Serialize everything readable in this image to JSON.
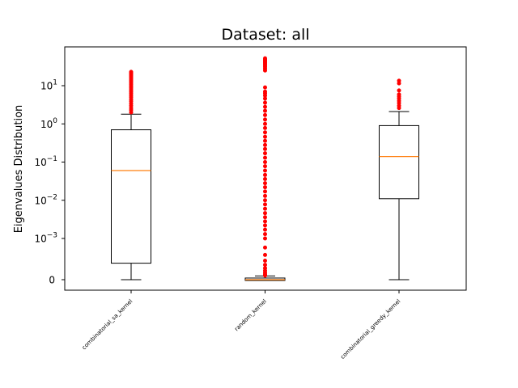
{
  "chart_data": {
    "type": "box",
    "title": "Dataset: all",
    "xlabel": "",
    "ylabel": "Eigenvalues Distribution",
    "yscale": "symlog",
    "ylim_label": [
      "0",
      "10^1"
    ],
    "yticks": [
      {
        "value": 0,
        "label": "0",
        "base": "0",
        "exp": ""
      },
      {
        "value": 0.001,
        "label": "10^-3",
        "base": "10",
        "exp": "−3"
      },
      {
        "value": 0.01,
        "label": "10^-2",
        "base": "10",
        "exp": "−2"
      },
      {
        "value": 0.1,
        "label": "10^-1",
        "base": "10",
        "exp": "−1"
      },
      {
        "value": 1,
        "label": "10^0",
        "base": "10",
        "exp": "0"
      },
      {
        "value": 10,
        "label": "10^1",
        "base": "10",
        "exp": "1"
      }
    ],
    "colors": {
      "box": "#000000",
      "median": "#ff7f0e",
      "outlier": "#ff0000"
    },
    "categories": [
      "combinatorial_sa_kernel",
      "random_kernel",
      "combinatorial_greedy_kernel"
    ],
    "boxes": [
      {
        "name": "combinatorial_sa_kernel",
        "whisker_low": 0,
        "q1": 0.0004,
        "median": 0.06,
        "q3": 0.7,
        "whisker_high": 1.8,
        "outliers": [
          2,
          2.3,
          2.6,
          3,
          3.4,
          3.9,
          4.4,
          5,
          5.6,
          6.3,
          7,
          7.8,
          8.7,
          9.6,
          10.6,
          11.7,
          12.9,
          14.1,
          15.5,
          17,
          18.5,
          20,
          21.5,
          23
        ]
      },
      {
        "name": "random_kernel",
        "whisker_low": 0,
        "q1": 0,
        "median": 0,
        "q3": 4e-05,
        "whisker_high": 9e-05,
        "outliers": [
          0.0001,
          0.00013,
          0.00017,
          0.00022,
          0.00028,
          0.00036,
          0.00046,
          0.0006,
          0.00078,
          0.001,
          0.0013,
          0.0017,
          0.0022,
          0.0028,
          0.0036,
          0.0046,
          0.006,
          0.0078,
          0.01,
          0.013,
          0.017,
          0.022,
          0.028,
          0.036,
          0.046,
          0.06,
          0.078,
          0.1,
          0.13,
          0.17,
          0.22,
          0.28,
          0.36,
          0.46,
          0.6,
          0.78,
          1,
          1.3,
          1.7,
          2.2,
          2.8,
          3.6,
          4.6,
          5.5,
          6.3,
          7,
          9,
          25,
          28,
          31,
          34,
          37,
          40,
          43,
          46,
          49,
          52
        ]
      },
      {
        "name": "combinatorial_greedy_kernel",
        "whisker_low": 0,
        "q1": 0.011,
        "median": 0.14,
        "q3": 0.9,
        "whisker_high": 2.1,
        "outliers": [
          2.6,
          3,
          3.5,
          4,
          4.6,
          5.2,
          5.9,
          7.5,
          11.5,
          13.5
        ]
      }
    ]
  }
}
